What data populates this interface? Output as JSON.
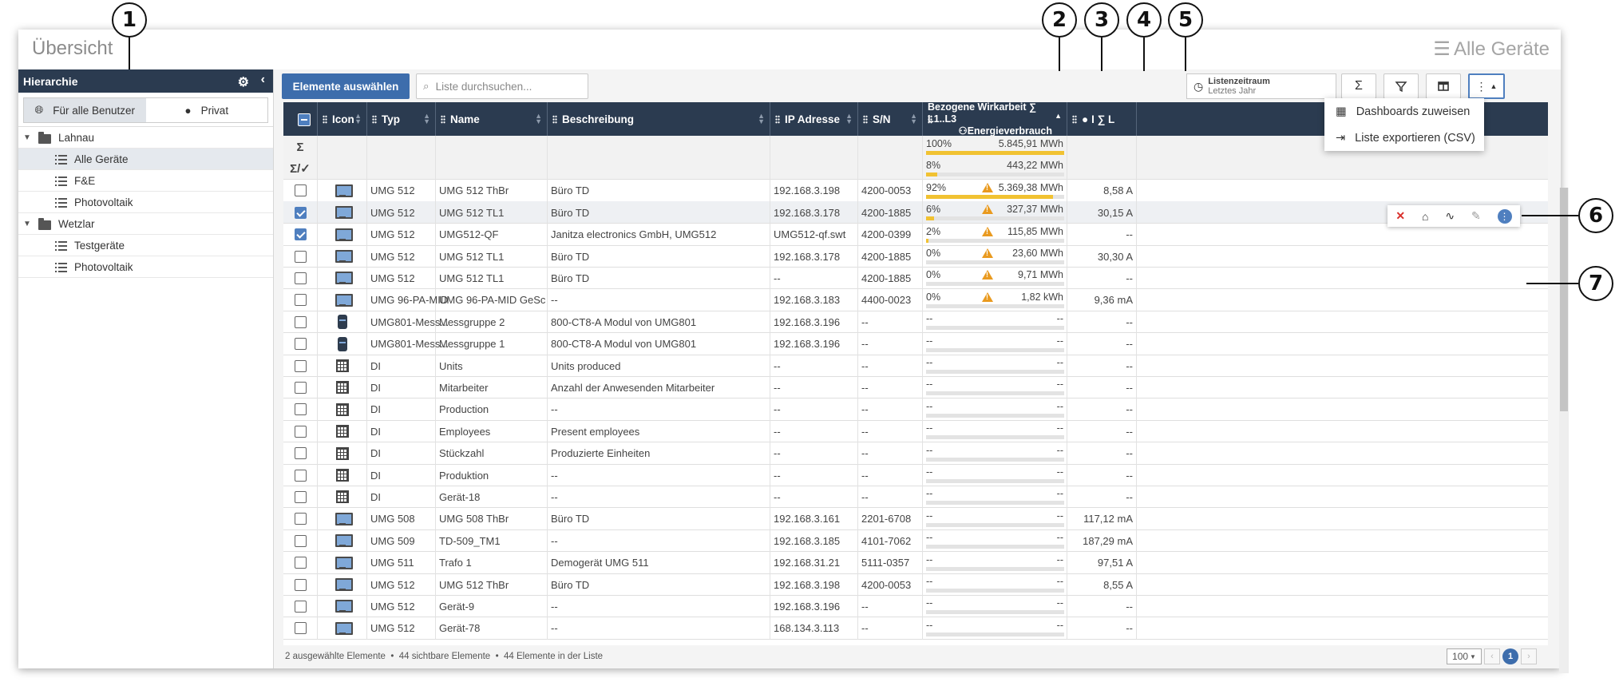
{
  "window": {
    "title": "Übersicht",
    "title_right": "Alle Geräte"
  },
  "sidebar": {
    "header": "Hierarchie",
    "toggle": [
      {
        "label": "Für alle Benutzer",
        "active": true
      },
      {
        "label": "Privat",
        "active": false
      }
    ],
    "tree": [
      {
        "label": "Lahnau",
        "type": "folder",
        "level": 0
      },
      {
        "label": "Alle Geräte",
        "type": "list",
        "level": 1,
        "selected": true
      },
      {
        "label": "F&E",
        "type": "list",
        "level": 1
      },
      {
        "label": "Photovoltaik",
        "type": "list",
        "level": 1
      },
      {
        "label": "Wetzlar",
        "type": "folder",
        "level": 0
      },
      {
        "label": "Testgeräte",
        "type": "list",
        "level": 1
      },
      {
        "label": "Photovoltaik",
        "type": "list",
        "level": 1
      }
    ]
  },
  "toolbar": {
    "select_label": "Elemente auswählen",
    "search_placeholder": "Liste durchsuchen...",
    "period_label": "Listenzeitraum",
    "period_value": "Letztes Jahr",
    "sum_symbol": "Σ",
    "filter_icon": "filter-icon",
    "columns_icon": "columns-icon",
    "more_icon": "more-vertical-icon"
  },
  "menu": {
    "items": [
      "Dashboards zuweisen",
      "Liste exportieren (CSV)"
    ]
  },
  "table": {
    "headers": [
      "Icon",
      "Typ",
      "Name",
      "Beschreibung",
      "IP Adresse",
      "S/N",
      "Bezogene Wirkarbeit ∑ L1..L3",
      "Energieverbrauch",
      "I ∑ L"
    ],
    "sum_rows": [
      {
        "label": "Σ",
        "pct": "100%",
        "fill": 1.0,
        "value": "5.845,91 MWh"
      },
      {
        "label": "Σ/✓",
        "pct": "8%",
        "fill": 0.08,
        "value": "443,22 MWh"
      }
    ],
    "rows": [
      {
        "checked": false,
        "icon": "monitor",
        "typ": "UMG 512",
        "name": "UMG 512 ThBr",
        "desc": "Büro TD",
        "ip": "192.168.3.198",
        "sn": "4200-0053",
        "pct": "92%",
        "fill": 0.92,
        "warn": true,
        "energy": "5.369,38 MWh",
        "i": "8,58 A"
      },
      {
        "checked": true,
        "icon": "monitor",
        "typ": "UMG 512",
        "name": "UMG 512 TL1",
        "desc": "Büro TD",
        "ip": "192.168.3.178",
        "sn": "4200-1885",
        "pct": "6%",
        "fill": 0.06,
        "warn": true,
        "energy": "327,37 MWh",
        "i": "30,15 A",
        "hl": true
      },
      {
        "checked": true,
        "icon": "monitor",
        "typ": "UMG 512",
        "name": "UMG512-QF",
        "desc": "Janitza electronics GmbH, UMG512",
        "ip": "UMG512-qf.swt",
        "sn": "4200-0399",
        "pct": "2%",
        "fill": 0.02,
        "warn": true,
        "energy": "115,85 MWh",
        "i": "--"
      },
      {
        "checked": false,
        "icon": "monitor",
        "typ": "UMG 512",
        "name": "UMG 512 TL1",
        "desc": "Büro TD",
        "ip": "192.168.3.178",
        "sn": "4200-1885",
        "pct": "0%",
        "fill": 0,
        "warn": true,
        "energy": "23,60 MWh",
        "i": "30,30 A"
      },
      {
        "checked": false,
        "icon": "monitor",
        "typ": "UMG 512",
        "name": "UMG 512 TL1",
        "desc": "Büro TD",
        "ip": "--",
        "sn": "4200-1885",
        "pct": "0%",
        "fill": 0,
        "warn": true,
        "energy": "9,71 MWh",
        "i": "--"
      },
      {
        "checked": false,
        "icon": "monitor-blue",
        "typ": "UMG 96-PA-MID",
        "name": "UMG 96-PA-MID GeSc",
        "desc": "--",
        "ip": "192.168.3.183",
        "sn": "4400-0023",
        "pct": "0%",
        "fill": 0,
        "warn": true,
        "energy": "1,82 kWh",
        "i": "9,36 mA"
      },
      {
        "checked": false,
        "icon": "cylinder",
        "typ": "UMG801-Mess...",
        "name": "Messgruppe 2",
        "desc": "800-CT8-A Modul von UMG801",
        "ip": "192.168.3.196",
        "sn": "--",
        "pct": "--",
        "fill": 0,
        "warn": false,
        "energy": "--",
        "i": "--"
      },
      {
        "checked": false,
        "icon": "cylinder",
        "typ": "UMG801-Mess...",
        "name": "Messgruppe 1",
        "desc": "800-CT8-A Modul von UMG801",
        "ip": "192.168.3.196",
        "sn": "--",
        "pct": "--",
        "fill": 0,
        "warn": false,
        "energy": "--",
        "i": "--"
      },
      {
        "checked": false,
        "icon": "grid",
        "typ": "DI",
        "name": "Units",
        "desc": "Units produced",
        "ip": "--",
        "sn": "--",
        "pct": "--",
        "fill": 0,
        "warn": false,
        "energy": "--",
        "i": "--"
      },
      {
        "checked": false,
        "icon": "grid",
        "typ": "DI",
        "name": "Mitarbeiter",
        "desc": "Anzahl der Anwesenden Mitarbeiter",
        "ip": "--",
        "sn": "--",
        "pct": "--",
        "fill": 0,
        "warn": false,
        "energy": "--",
        "i": "--"
      },
      {
        "checked": false,
        "icon": "grid",
        "typ": "DI",
        "name": "Production",
        "desc": "--",
        "ip": "--",
        "sn": "--",
        "pct": "--",
        "fill": 0,
        "warn": false,
        "energy": "--",
        "i": "--"
      },
      {
        "checked": false,
        "icon": "grid",
        "typ": "DI",
        "name": "Employees",
        "desc": "Present employees",
        "ip": "--",
        "sn": "--",
        "pct": "--",
        "fill": 0,
        "warn": false,
        "energy": "--",
        "i": "--"
      },
      {
        "checked": false,
        "icon": "grid",
        "typ": "DI",
        "name": "Stückzahl",
        "desc": "Produzierte Einheiten",
        "ip": "--",
        "sn": "--",
        "pct": "--",
        "fill": 0,
        "warn": false,
        "energy": "--",
        "i": "--"
      },
      {
        "checked": false,
        "icon": "grid",
        "typ": "DI",
        "name": "Produktion",
        "desc": "--",
        "ip": "--",
        "sn": "--",
        "pct": "--",
        "fill": 0,
        "warn": false,
        "energy": "--",
        "i": "--"
      },
      {
        "checked": false,
        "icon": "grid",
        "typ": "DI",
        "name": "Gerät-18",
        "desc": "--",
        "ip": "--",
        "sn": "--",
        "pct": "--",
        "fill": 0,
        "warn": false,
        "energy": "--",
        "i": "--"
      },
      {
        "checked": false,
        "icon": "monitor",
        "typ": "UMG 508",
        "name": "UMG 508 ThBr",
        "desc": "Büro TD",
        "ip": "192.168.3.161",
        "sn": "2201-6708",
        "pct": "--",
        "fill": 0,
        "warn": false,
        "energy": "--",
        "i": "117,12 mA"
      },
      {
        "checked": false,
        "icon": "monitor",
        "typ": "UMG 509",
        "name": "TD-509_TM1",
        "desc": "--",
        "ip": "192.168.3.185",
        "sn": "4101-7062",
        "pct": "--",
        "fill": 0,
        "warn": false,
        "energy": "--",
        "i": "187,29 mA"
      },
      {
        "checked": false,
        "icon": "monitor",
        "typ": "UMG 511",
        "name": "Trafo 1",
        "desc": "Demogerät UMG 511",
        "ip": "192.168.31.21",
        "sn": "5111-0357",
        "pct": "--",
        "fill": 0,
        "warn": false,
        "energy": "--",
        "i": "97,51 A"
      },
      {
        "checked": false,
        "icon": "monitor",
        "typ": "UMG 512",
        "name": "UMG 512 ThBr",
        "desc": "Büro TD",
        "ip": "192.168.3.198",
        "sn": "4200-0053",
        "pct": "--",
        "fill": 0,
        "warn": false,
        "energy": "--",
        "i": "8,55 A"
      },
      {
        "checked": false,
        "icon": "monitor",
        "typ": "UMG 512",
        "name": "Gerät-9",
        "desc": "--",
        "ip": "192.168.3.196",
        "sn": "--",
        "pct": "--",
        "fill": 0,
        "warn": false,
        "energy": "--",
        "i": "--"
      },
      {
        "checked": false,
        "icon": "monitor",
        "typ": "UMG 512",
        "name": "Gerät-78",
        "desc": "--",
        "ip": "168.134.3.113",
        "sn": "--",
        "pct": "--",
        "fill": 0,
        "warn": false,
        "energy": "--",
        "i": "--"
      }
    ]
  },
  "footer": {
    "selected": "2 ausgewählte Elemente",
    "visible": "44 sichtbare Elemente",
    "total": "44 Elemente in der Liste",
    "page_size": "100",
    "page": "1"
  },
  "callouts": [
    "1",
    "2",
    "3",
    "4",
    "5",
    "6",
    "7"
  ],
  "colors": {
    "header_bg": "#2b3b50",
    "accent": "#3d6dac",
    "bar_fill": "#f1c232",
    "warning": "#e99a1f",
    "delete": "#d9302c"
  }
}
